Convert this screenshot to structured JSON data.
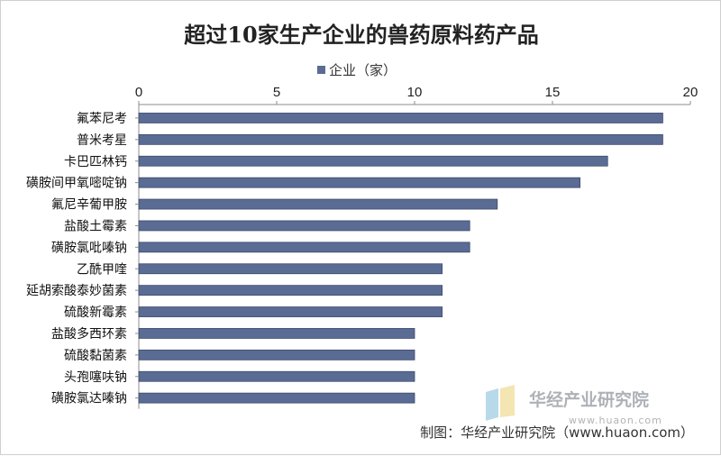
{
  "chart_data": {
    "type": "bar",
    "orientation": "horizontal",
    "title": "超过10家生产企业的兽药原料药产品",
    "series": [
      {
        "name": "企业（家）",
        "color": "#5a6b94"
      }
    ],
    "categories": [
      "氟苯尼考",
      "普米考星",
      "卡巴匹林钙",
      "磺胺间甲氧嘧啶钠",
      "氟尼辛葡甲胺",
      "盐酸土霉素",
      "磺胺氯吡嗪钠",
      "乙酰甲喹",
      "延胡索酸泰妙菌素",
      "硫酸新霉素",
      "盐酸多西环素",
      "硫酸黏菌素",
      "头孢噻呋钠",
      "磺胺氯达嗪钠"
    ],
    "values": [
      19,
      19,
      17,
      16,
      13,
      12,
      12,
      11,
      11,
      11,
      10,
      10,
      10,
      10
    ],
    "xlim": [
      0,
      20
    ],
    "xticks": [
      "0",
      "5",
      "10",
      "15",
      "20"
    ],
    "axis_position": "top",
    "legend_position": "top",
    "grid": false
  },
  "source": "制图：华经产业研究院（www.huaon.com）",
  "watermark": {
    "text": "华经产业研究院",
    "url": "www.huaon.com"
  }
}
